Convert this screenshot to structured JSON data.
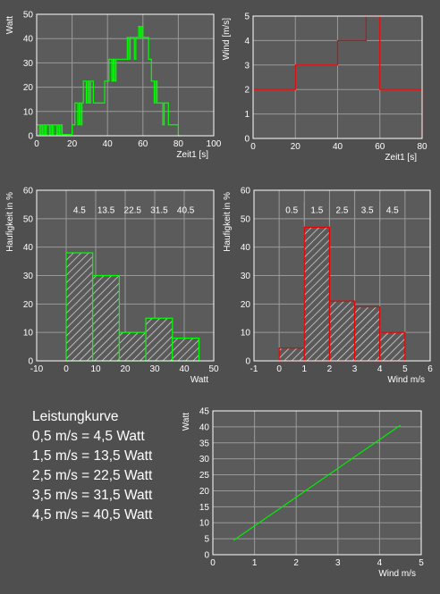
{
  "chart_data": [
    {
      "id": "power_time",
      "type": "line",
      "color": "#00ff00",
      "xlabel": "Zeit1 [s]",
      "ylabel": "Watt",
      "xlim": [
        0,
        100
      ],
      "ylim": [
        0,
        50
      ],
      "xticks": [
        0,
        20,
        40,
        60,
        80,
        100
      ],
      "yticks": [
        0,
        10,
        20,
        30,
        40,
        50
      ],
      "grid": true,
      "x": [
        0,
        0.8,
        1.6,
        2.4,
        3.2,
        4.0,
        4.8,
        5.6,
        6.4,
        7.2,
        8.0,
        8.8,
        9.6,
        10.4,
        11.2,
        12.0,
        12.8,
        13.6,
        14.4,
        15.2,
        16.0,
        16.8,
        17.6,
        18.4,
        19.2,
        20.0,
        20.8,
        21.6,
        22.4,
        23.2,
        24.0,
        24.8,
        25.6,
        26.4,
        27.2,
        28.0,
        28.8,
        29.6,
        30.4,
        31.2,
        32.0,
        32.8,
        33.6,
        34.4,
        35.2,
        36.0,
        36.8,
        37.6,
        38.4,
        39.2,
        40.0,
        40.8,
        41.6,
        42.4,
        43.2,
        44.0,
        44.8,
        45.6,
        46.4,
        47.2,
        48.0,
        48.8,
        49.6,
        50.4,
        51.2,
        52.0,
        52.8,
        53.6,
        54.4,
        55.2,
        56.0,
        56.8,
        57.6,
        58.4,
        59.2,
        60.0,
        60.8,
        61.6,
        62.4,
        63.2,
        64.0,
        64.8,
        65.6,
        66.4,
        67.2,
        68.0,
        68.8,
        69.6,
        70.4,
        71.2,
        72.0,
        72.8,
        73.6,
        74.4,
        75.2,
        76.0,
        76.8,
        77.6,
        78.4,
        79.2,
        80.0,
        80.8
      ],
      "y": [
        4.5,
        4.5,
        0.5,
        4.5,
        0.5,
        4.5,
        0.5,
        4.5,
        4.5,
        0.5,
        4.5,
        0.5,
        4.5,
        4.5,
        0.5,
        4.5,
        0.5,
        4.5,
        0.5,
        0.5,
        0.5,
        0.5,
        0.5,
        0.5,
        0.5,
        4.5,
        4.5,
        13.5,
        13.5,
        4.5,
        13.5,
        4.5,
        13.5,
        22.5,
        22.5,
        13.5,
        22.5,
        13.5,
        22.5,
        22.5,
        13.5,
        13.5,
        13.5,
        13.5,
        13.5,
        13.5,
        13.5,
        13.5,
        22.5,
        22.5,
        22.5,
        31.5,
        31.5,
        22.5,
        31.5,
        22.5,
        31.5,
        31.5,
        31.5,
        31.5,
        31.5,
        31.5,
        31.5,
        31.5,
        40.5,
        31.5,
        40.5,
        40.5,
        40.5,
        31.5,
        40.5,
        40.5,
        45,
        40.5,
        45,
        40.5,
        40.5,
        40.5,
        40.5,
        31.5,
        31.5,
        22.5,
        22.5,
        13.5,
        22.5,
        13.5,
        13.5,
        13.5,
        13.5,
        4.5,
        13.5,
        13.5,
        13.5,
        4.5,
        4.5,
        4.5,
        4.5,
        4.5,
        4.5,
        4.5,
        0,
        0
      ]
    },
    {
      "id": "wind_time",
      "type": "line",
      "color": "#ee0000",
      "xlabel": "Zeit1 [s]",
      "ylabel": "Wind [m/s]",
      "xlim": [
        0,
        80
      ],
      "ylim": [
        0,
        5
      ],
      "xticks": [
        0,
        20,
        40,
        60,
        80
      ],
      "yticks": [
        0,
        1,
        2,
        3,
        4,
        5
      ],
      "grid": true,
      "x": [
        0,
        20,
        20,
        40,
        40,
        53.5,
        53.5,
        60,
        60,
        80,
        80
      ],
      "y": [
        2,
        2,
        3,
        3,
        4,
        4,
        5,
        5,
        2,
        2,
        0
      ]
    },
    {
      "id": "hist_power",
      "type": "bar",
      "color": "#00ff00",
      "xlabel": "Watt",
      "ylabel": "Haufigkeit in %",
      "xlim": [
        -10,
        50
      ],
      "ylim": [
        0,
        60
      ],
      "xticks": [
        -10,
        0,
        10,
        20,
        30,
        40,
        50
      ],
      "yticks": [
        0,
        10,
        20,
        30,
        40,
        50,
        60
      ],
      "grid": true,
      "categories": [
        "4.5",
        "13.5",
        "22.5",
        "31.5",
        "40.5"
      ],
      "bins": [
        [
          0,
          9
        ],
        [
          9,
          18
        ],
        [
          18,
          27
        ],
        [
          27,
          36
        ],
        [
          36,
          45
        ]
      ],
      "values": [
        38,
        30,
        10,
        15,
        8
      ]
    },
    {
      "id": "hist_wind",
      "type": "bar",
      "color": "#ee0000",
      "xlabel": "Wind m/s",
      "ylabel": "Haufigkeit in %",
      "xlim": [
        -1,
        6
      ],
      "ylim": [
        0,
        60
      ],
      "xticks": [
        -1,
        0,
        1,
        2,
        3,
        4,
        5,
        6
      ],
      "yticks": [
        0,
        10,
        20,
        30,
        40,
        50,
        60
      ],
      "grid": true,
      "categories": [
        "0.5",
        "1.5",
        "2.5",
        "3.5",
        "4.5"
      ],
      "bins": [
        [
          0,
          1
        ],
        [
          1,
          2
        ],
        [
          2,
          3
        ],
        [
          3,
          4
        ],
        [
          4,
          5
        ]
      ],
      "values": [
        4.5,
        47,
        21,
        19,
        10
      ]
    },
    {
      "id": "power_curve",
      "type": "line",
      "color": "#00ee00",
      "xlabel": "Wind m/s",
      "ylabel": "Watt",
      "xlim": [
        0,
        5
      ],
      "ylim": [
        0,
        45
      ],
      "xticks": [
        0,
        1,
        2,
        3,
        4,
        5
      ],
      "yticks": [
        0,
        5,
        10,
        15,
        20,
        25,
        30,
        35,
        40,
        45
      ],
      "grid": true,
      "x": [
        0.5,
        1.5,
        2.5,
        3.5,
        4.5
      ],
      "y": [
        4.5,
        13.5,
        22.5,
        31.5,
        40.5
      ]
    }
  ],
  "legend": {
    "title": "Leistungkurve",
    "lines": [
      "0,5 m/s = 4,5 Watt",
      "1,5 m/s = 13,5 Watt",
      "2,5 m/s = 22,5 Watt",
      "3,5 m/s = 31,5 Watt",
      "4,5 m/s = 40,5 Watt"
    ]
  }
}
